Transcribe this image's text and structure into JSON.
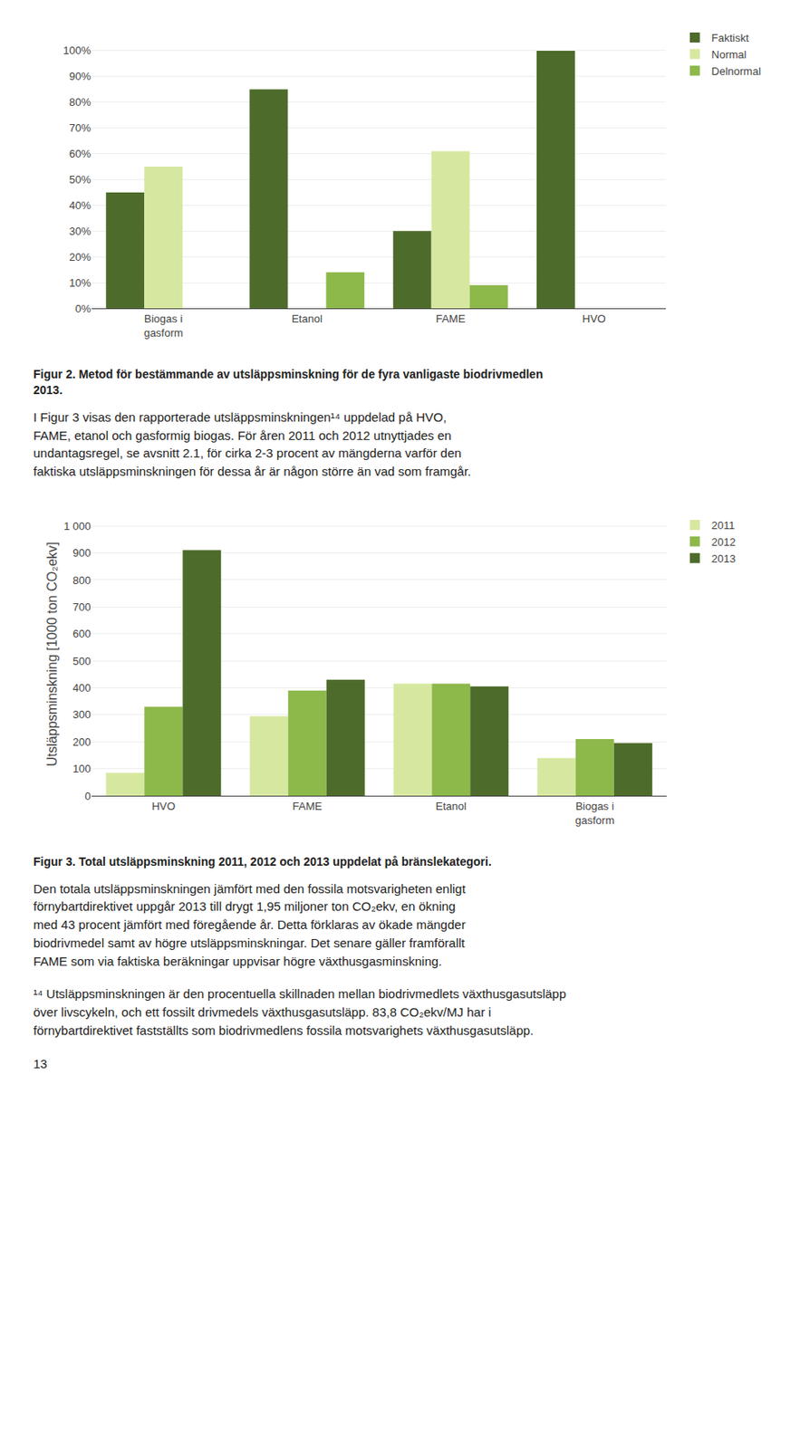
{
  "chart_data": [
    {
      "type": "bar",
      "title": "Figur 2. Metod för bestämmande av utsläppsminskning för de fyra vanligaste biodrivmedlen\n2013.",
      "categories": [
        "Biogas i\ngasform",
        "Etanol",
        "FAME",
        "HVO"
      ],
      "series": [
        {
          "name": "Faktiskt",
          "color": "#4d6b2a",
          "values": [
            45,
            85,
            30,
            100
          ]
        },
        {
          "name": "Normal",
          "color": "#d6e8a0",
          "values": [
            55,
            0,
            61,
            0
          ]
        },
        {
          "name": "Delnormal",
          "color": "#8db84a",
          "values": [
            0,
            14,
            9,
            0
          ]
        }
      ],
      "ylim": [
        0,
        110
      ],
      "yticks": [
        {
          "value": 0,
          "label": "0%"
        },
        {
          "value": 10,
          "label": "10%"
        },
        {
          "value": 20,
          "label": "20%"
        },
        {
          "value": 30,
          "label": "30%"
        },
        {
          "value": 40,
          "label": "40%"
        },
        {
          "value": 50,
          "label": "50%"
        },
        {
          "value": 60,
          "label": "60%"
        },
        {
          "value": 70,
          "label": "70%"
        },
        {
          "value": 80,
          "label": "80%"
        },
        {
          "value": 90,
          "label": "90%"
        },
        {
          "value": 100,
          "label": "100%"
        }
      ],
      "grid": true,
      "legend": "upper right",
      "annotations": [
        "I Figur 3 visas den rapporterade utsläppsminskningen¹⁴ uppdelad på HVO,\nFAME, etanol och gasformig biogas. För åren 2011 och 2012 utnyttjades en\nundantagsregel, se avsnitt 2.1, för cirka 2-3 procent av mängderna varför den\nfaktiska utsläppsminskningen för dessa år är någon större än vad som framgår."
      ]
    },
    {
      "type": "bar",
      "title": "Figur 3. Total utsläppsminskning 2011, 2012 och 2013 uppdelat på bränslekategori.",
      "ylabel": "Utsläppsminskning [1000 ton CO₂ekv]",
      "categories": [
        "HVO",
        "FAME",
        "Etanol",
        "Biogas i\ngasform"
      ],
      "series": [
        {
          "name": "2011",
          "color": "#d6e8a0",
          "values": [
            85,
            295,
            415,
            140
          ]
        },
        {
          "name": "2012",
          "color": "#8db84a",
          "values": [
            330,
            390,
            415,
            210
          ]
        },
        {
          "name": "2013",
          "color": "#4d6b2a",
          "values": [
            910,
            430,
            405,
            195
          ]
        }
      ],
      "ylim": [
        0,
        1050
      ],
      "yticks": [
        0,
        100,
        200,
        300,
        400,
        500,
        600,
        700,
        800,
        900,
        {
          "value": 1000,
          "label": "1 000"
        }
      ],
      "grid": true,
      "legend": "upper right",
      "annotations": [
        "Den totala utsläppsminskningen jämfört med den fossila motsvarigheten enligt\nförnybartdirektivet uppgår 2013 till drygt 1,95 miljoner ton CO₂ekv, en ökning\nmed 43 procent jämfört med föregående år. Detta förklaras av ökade mängder\nbiodrivmedel samt av högre utsläppsminskningar. Det senare gäller framförallt\nFAME som via faktiska beräkningar uppvisar högre växthusgasminskning.",
        "¹⁴ Utsläppsminskningen är den procentuella skillnaden mellan biodrivmedlets växthusgasutsläpp\növer livscykeln, och ett fossilt drivmedels växthusgasutsläpp. 83,8 CO₂ekv/MJ har i\nförnybartdirektivet fastställts som biodrivmedlens fossila motsvarighets växthusgasutsläpp.",
        "13"
      ]
    }
  ]
}
